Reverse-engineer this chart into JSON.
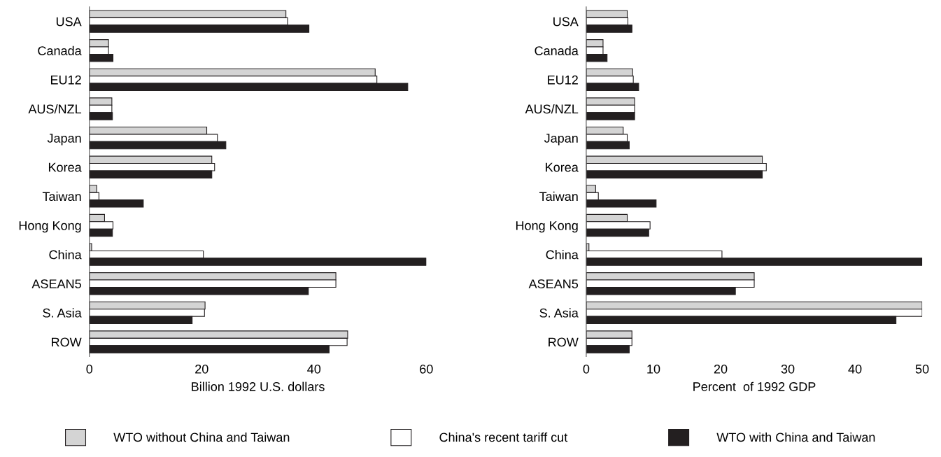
{
  "chart_data": [
    {
      "type": "bar",
      "orientation": "horizontal",
      "xlabel": "Billion 1992 U.S. dollars",
      "categories": [
        "USA",
        "Canada",
        "EU12",
        "AUS/NZL",
        "Japan",
        "Korea",
        "Taiwan",
        "Hong Kong",
        "China",
        "ASEAN5",
        "S. Asia",
        "ROW"
      ],
      "xlim": [
        0,
        60
      ],
      "xticks": [
        0,
        20,
        40,
        60
      ],
      "grid": false,
      "legend": "bottom",
      "series": [
        {
          "name": "WTO without China and Taiwan",
          "color": "#d4d4d4",
          "values": [
            35.0,
            3.4,
            50.9,
            4.0,
            20.9,
            21.8,
            1.3,
            2.7,
            0.4,
            43.9,
            20.6,
            46.0
          ]
        },
        {
          "name": "China's recent tariff cut",
          "color": "#ffffff",
          "values": [
            35.3,
            3.4,
            51.2,
            4.0,
            22.8,
            22.3,
            1.7,
            4.2,
            20.3,
            43.9,
            20.5,
            45.9
          ]
        },
        {
          "name": "WTO with China and Taiwan",
          "color": "#231f20",
          "values": [
            39.1,
            4.2,
            56.7,
            4.1,
            24.3,
            21.8,
            9.6,
            4.1,
            60.0,
            39.0,
            18.3,
            42.7
          ]
        }
      ]
    },
    {
      "type": "bar",
      "orientation": "horizontal",
      "xlabel": "Percent  of 1992 GDP",
      "categories": [
        "USA",
        "Canada",
        "EU12",
        "AUS/NZL",
        "Japan",
        "Korea",
        "Taiwan",
        "Hong Kong",
        "China",
        "ASEAN5",
        "S. Asia",
        "ROW"
      ],
      "xlim": [
        0,
        50
      ],
      "xticks": [
        0,
        10,
        20,
        30,
        40,
        50
      ],
      "grid": false,
      "series": [
        {
          "color": "#d4d4d4",
          "values": [
            6.1,
            2.5,
            6.9,
            7.2,
            5.5,
            26.2,
            1.4,
            6.1,
            0.4,
            25.0,
            50.0,
            6.8
          ]
        },
        {
          "color": "#ffffff",
          "values": [
            6.2,
            2.5,
            7.0,
            7.2,
            6.1,
            26.8,
            1.8,
            9.5,
            20.2,
            25.0,
            50.0,
            6.8
          ]
        },
        {
          "color": "#231f20",
          "values": [
            6.8,
            3.1,
            7.8,
            7.2,
            6.4,
            26.2,
            10.4,
            9.3,
            50.0,
            22.2,
            46.1,
            6.4
          ]
        }
      ]
    }
  ]
}
